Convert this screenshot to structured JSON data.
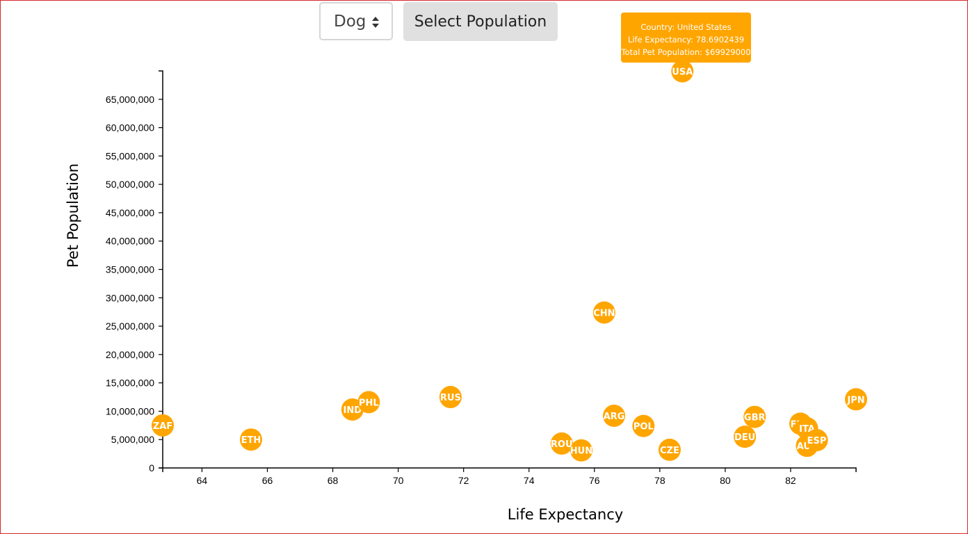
{
  "controls": {
    "animal_select_value": "Dog",
    "select_button_label": "Select Population"
  },
  "tooltip": {
    "line1": "Country: United States",
    "line2": "Life Expectancy: 78.6902439",
    "line3": "Total Pet Population: $69929000"
  },
  "colors": {
    "marker": "#ffa500",
    "marker_text": "#ffffff",
    "frame": "#d9262b"
  },
  "chart_data": {
    "type": "scatter",
    "xlabel": "Life Expectancy",
    "ylabel": "Pet Population",
    "xlim": [
      62.8,
      84.0
    ],
    "ylim": [
      0,
      70000000
    ],
    "xticks": [
      64,
      66,
      68,
      70,
      72,
      74,
      76,
      78,
      80,
      82
    ],
    "yticks": [
      0,
      5000000,
      10000000,
      15000000,
      20000000,
      25000000,
      30000000,
      35000000,
      40000000,
      45000000,
      50000000,
      55000000,
      60000000,
      65000000
    ],
    "grid": false,
    "points": [
      {
        "label": "ZAF",
        "x": 62.8,
        "y": 7500000
      },
      {
        "label": "ETH",
        "x": 65.5,
        "y": 5000000
      },
      {
        "label": "IND",
        "x": 68.6,
        "y": 10300000
      },
      {
        "label": "PHL",
        "x": 69.1,
        "y": 11600000
      },
      {
        "label": "RUS",
        "x": 71.6,
        "y": 12500000
      },
      {
        "label": "ROU",
        "x": 75.0,
        "y": 4300000
      },
      {
        "label": "HUN",
        "x": 75.6,
        "y": 3100000
      },
      {
        "label": "CHN",
        "x": 76.3,
        "y": 27400000
      },
      {
        "label": "ARG",
        "x": 76.6,
        "y": 9200000
      },
      {
        "label": "POL",
        "x": 77.5,
        "y": 7400000
      },
      {
        "label": "CZE",
        "x": 78.3,
        "y": 3200000
      },
      {
        "label": "USA",
        "x": 78.69,
        "y": 69929000
      },
      {
        "label": "DEU",
        "x": 80.6,
        "y": 5500000
      },
      {
        "label": "GBR",
        "x": 80.9,
        "y": 9000000
      },
      {
        "label": "FRA",
        "x": 82.3,
        "y": 7800000
      },
      {
        "label": "ITA",
        "x": 82.5,
        "y": 7000000
      },
      {
        "label": "AUS",
        "x": 82.5,
        "y": 3900000
      },
      {
        "label": "ESP",
        "x": 82.8,
        "y": 4900000
      },
      {
        "label": "JPN",
        "x": 84.0,
        "y": 12100000
      }
    ]
  }
}
